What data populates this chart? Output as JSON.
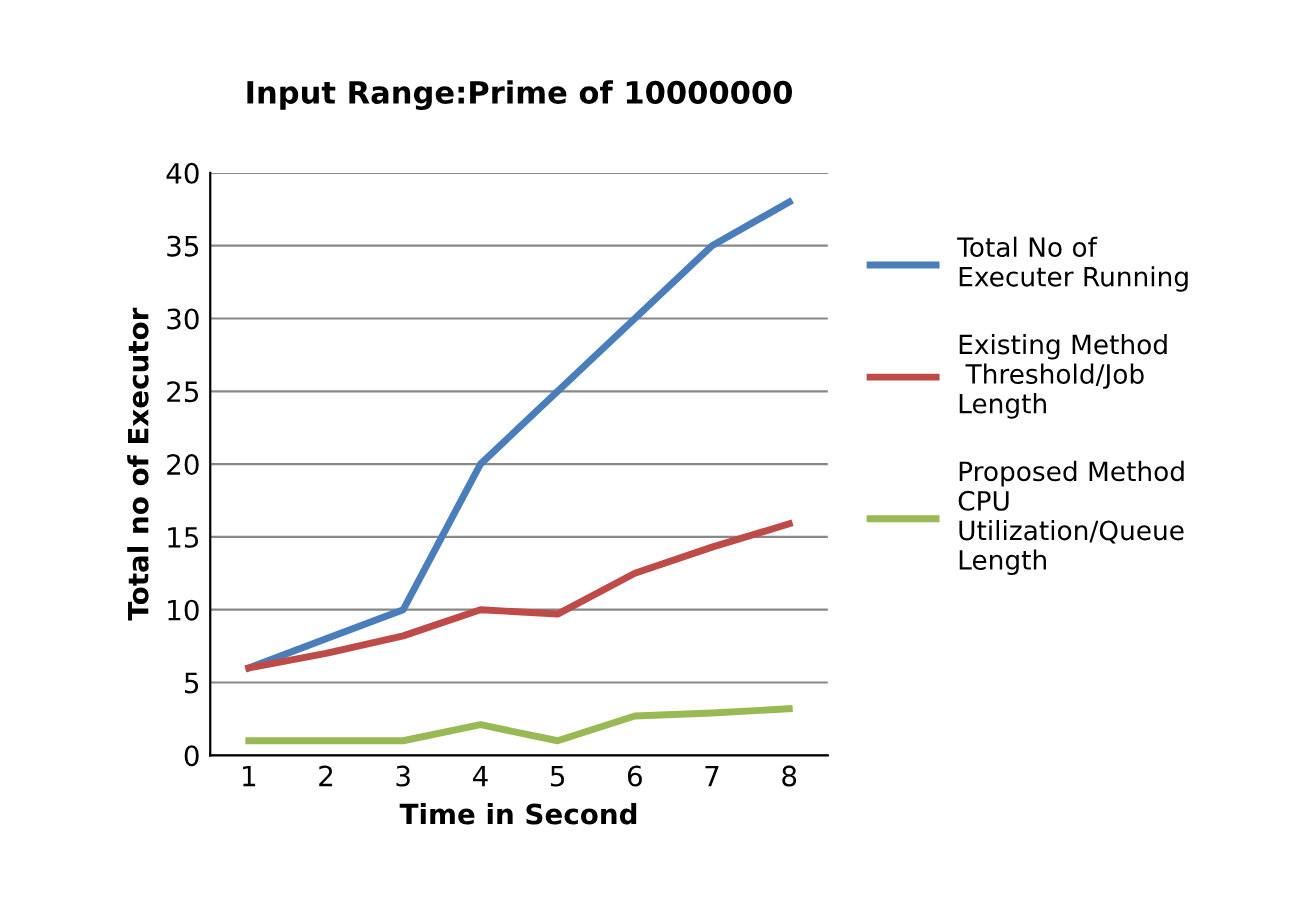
{
  "chart_data": {
    "type": "line",
    "title": "Input Range:Prime of 10000000",
    "xlabel": "Time in Second",
    "ylabel": "Total no of Executor",
    "categories": [
      "1",
      "2",
      "3",
      "4",
      "5",
      "6",
      "7",
      "8"
    ],
    "series": [
      {
        "name": "Total No of\nExecuter Running",
        "color": "#4a7ebb",
        "values": [
          6,
          8,
          10,
          20,
          25,
          30,
          35,
          38
        ]
      },
      {
        "name": "Existing Method\n Threshold/Job\nLength",
        "color": "#be4b48",
        "values": [
          6,
          7,
          8.2,
          10,
          9.7,
          12.5,
          14.3,
          15.9
        ]
      },
      {
        "name": "Proposed Method\nCPU\nUtilization/Queue\nLength",
        "color": "#98b954",
        "values": [
          1,
          1,
          1,
          2.1,
          1,
          2.7,
          2.9,
          3.2
        ]
      }
    ],
    "ylim": [
      0,
      40
    ],
    "yticks": [
      0,
      5,
      10,
      15,
      20,
      25,
      30,
      35,
      40
    ],
    "grid": "y",
    "legend": "right",
    "marker": "none",
    "line_style": "solid"
  }
}
